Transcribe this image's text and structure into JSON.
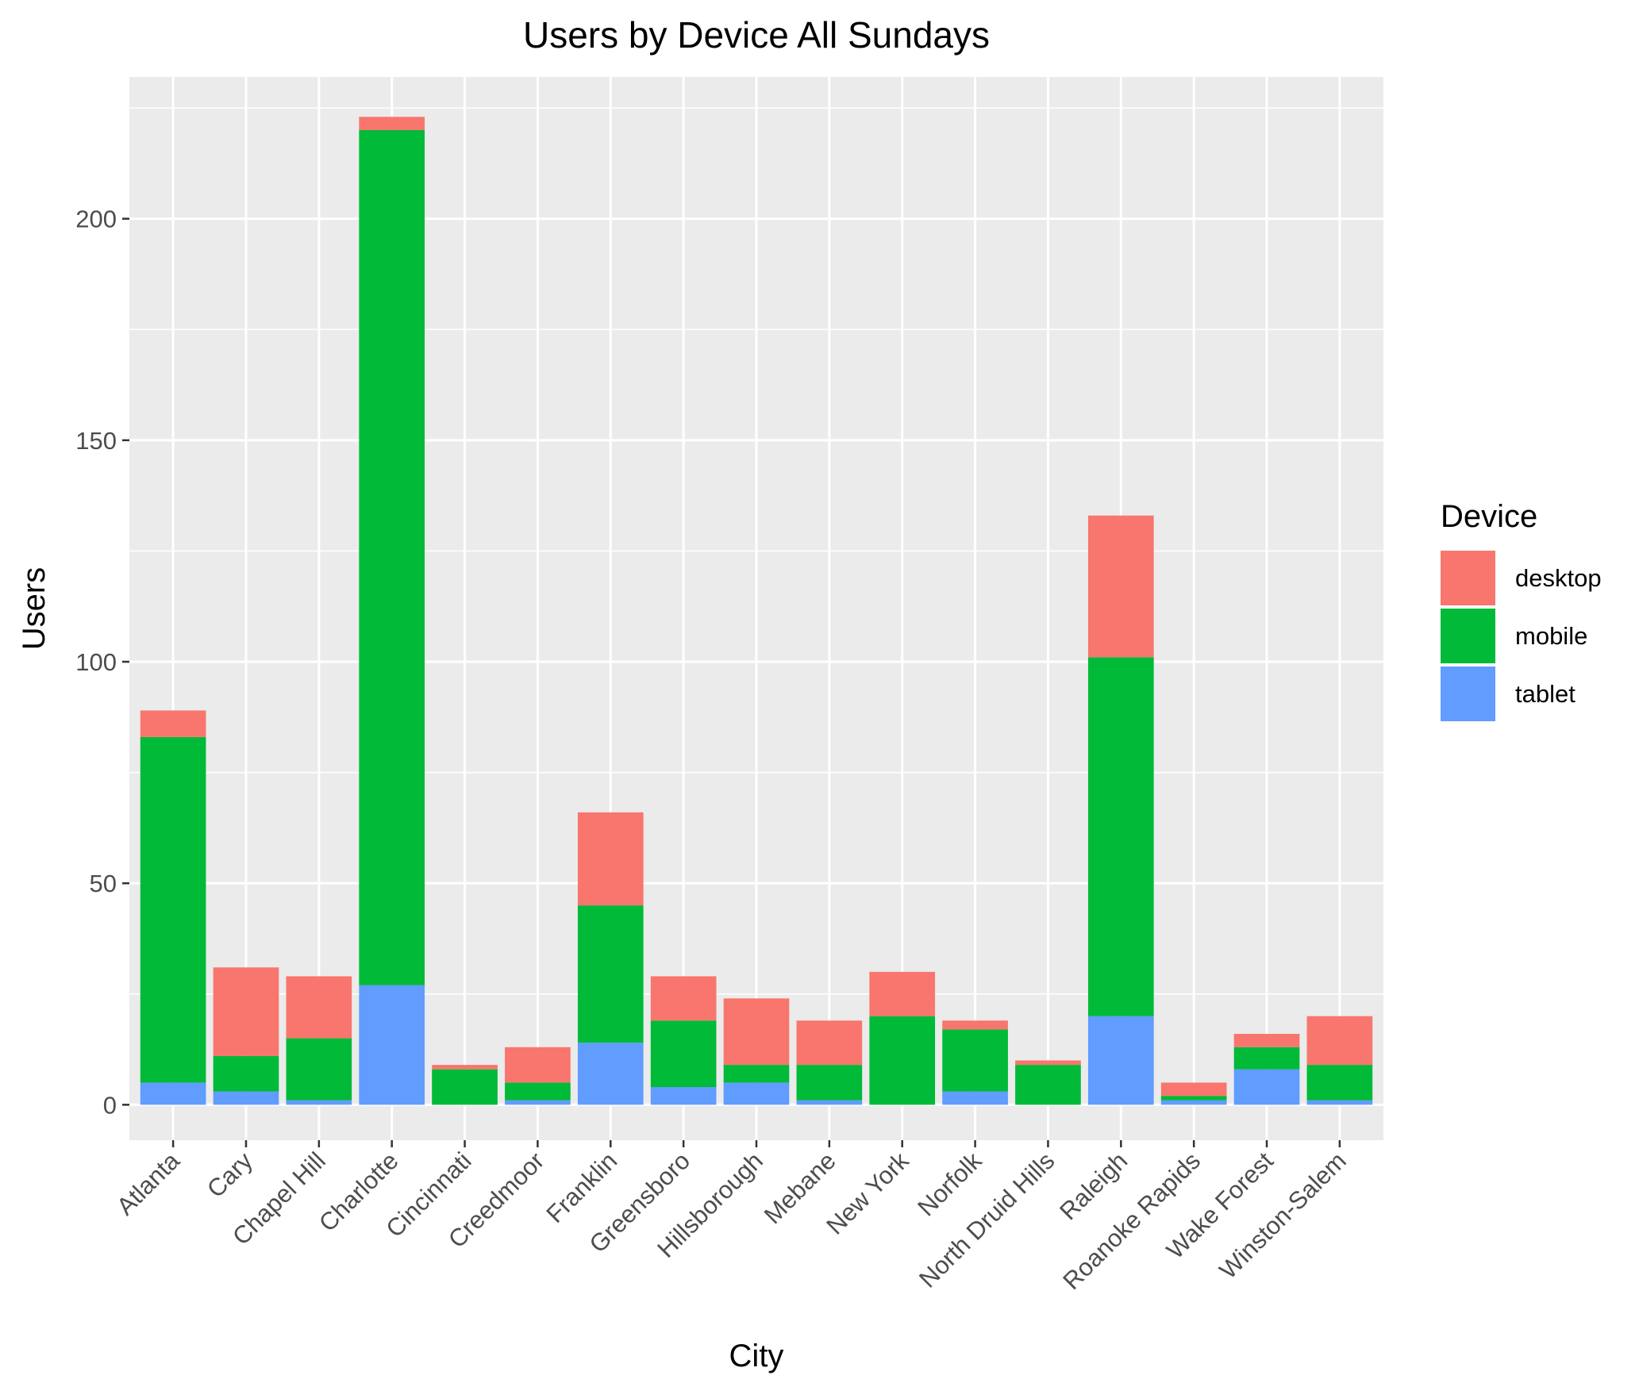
{
  "chart_data": {
    "type": "bar",
    "stacked": true,
    "title": "Users by Device All Sundays",
    "xlabel": "City",
    "ylabel": "Users",
    "ylim": [
      -8,
      232
    ],
    "yticks": [
      0,
      50,
      100,
      150,
      200
    ],
    "grid": true,
    "legend": {
      "title": "Device",
      "position": "right"
    },
    "categories": [
      "Atlanta",
      "Cary",
      "Chapel Hill",
      "Charlotte",
      "Cincinnati",
      "Creedmoor",
      "Franklin",
      "Greensboro",
      "Hillsborough",
      "Mebane",
      "New York",
      "Norfolk",
      "North Druid Hills",
      "Raleigh",
      "Roanoke Rapids",
      "Wake Forest",
      "Winston-Salem"
    ],
    "series": [
      {
        "name": "tablet",
        "color": "#619CFF",
        "values": [
          5,
          3,
          1,
          27,
          0,
          1,
          14,
          4,
          5,
          1,
          0,
          3,
          0,
          20,
          1,
          8,
          1
        ]
      },
      {
        "name": "mobile",
        "color": "#00BA38",
        "values": [
          78,
          8,
          14,
          193,
          8,
          4,
          31,
          15,
          4,
          8,
          20,
          14,
          9,
          81,
          1,
          5,
          8
        ]
      },
      {
        "name": "desktop",
        "color": "#F8766D",
        "values": [
          6,
          20,
          14,
          3,
          1,
          8,
          21,
          10,
          15,
          10,
          10,
          2,
          1,
          32,
          3,
          3,
          11
        ]
      }
    ],
    "legend_order": [
      "desktop",
      "mobile",
      "tablet"
    ],
    "panel_color": "#EBEBEB",
    "grid_color": "#FFFFFF"
  }
}
